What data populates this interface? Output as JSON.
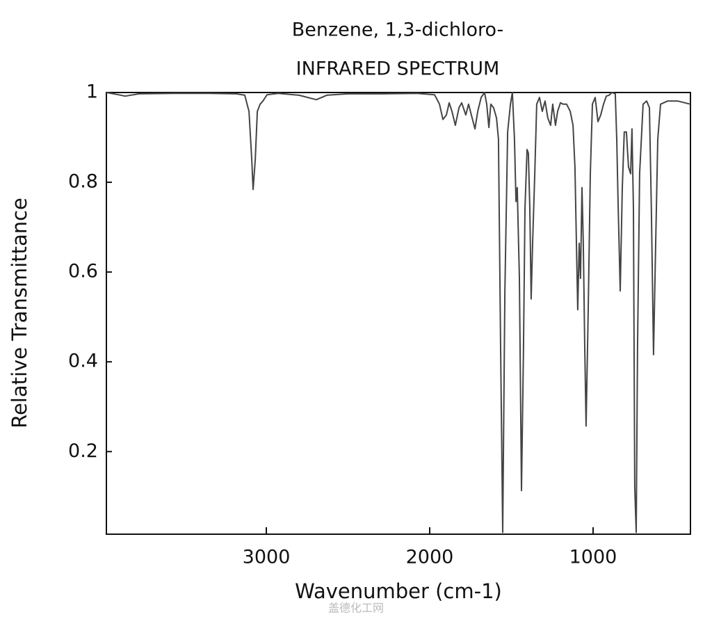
{
  "chart_data": {
    "type": "line",
    "title": "Benzene, 1,3-dichloro-",
    "subtitle": "INFRARED SPECTRUM",
    "x_label": "Wavenumber (cm-1)",
    "y_label": "Relative Transmittance",
    "color": "#444444",
    "xlim": [
      3979,
      404
    ],
    "ylim": [
      0.016,
      1.0
    ],
    "xticks": [
      3000,
      2000,
      1000
    ],
    "yticks": [
      1,
      0.8,
      0.6,
      0.4,
      0.2
    ],
    "x": [
      3979,
      3906,
      3864,
      3779,
      3566,
      3353,
      3183,
      3132,
      3106,
      3089,
      3081,
      3068,
      3055,
      3038,
      3021,
      2996,
      2928,
      2800,
      2694,
      2630,
      2502,
      2289,
      2077,
      1970,
      1940,
      1919,
      1898,
      1881,
      1864,
      1843,
      1821,
      1804,
      1779,
      1762,
      1745,
      1723,
      1706,
      1685,
      1664,
      1651,
      1638,
      1626,
      1609,
      1591,
      1579,
      1566,
      1553,
      1540,
      1523,
      1506,
      1494,
      1481,
      1472,
      1464,
      1451,
      1438,
      1426,
      1417,
      1404,
      1396,
      1387,
      1379,
      1370,
      1357,
      1345,
      1328,
      1311,
      1294,
      1277,
      1260,
      1247,
      1230,
      1217,
      1200,
      1183,
      1162,
      1140,
      1123,
      1111,
      1102,
      1094,
      1085,
      1077,
      1068,
      1060,
      1051,
      1043,
      1030,
      1017,
      1004,
      987,
      970,
      953,
      936,
      919,
      902,
      885,
      864,
      855,
      847,
      834,
      821,
      809,
      796,
      783,
      770,
      762,
      753,
      745,
      736,
      728,
      715,
      694,
      672,
      655,
      643,
      630,
      617,
      604,
      587,
      545,
      481,
      438,
      404
    ],
    "values": [
      1.0,
      0.995,
      0.992,
      0.997,
      0.998,
      0.998,
      0.997,
      0.994,
      0.958,
      0.85,
      0.784,
      0.85,
      0.958,
      0.974,
      0.981,
      0.995,
      0.998,
      0.994,
      0.984,
      0.994,
      0.997,
      0.997,
      0.998,
      0.995,
      0.974,
      0.94,
      0.95,
      0.977,
      0.958,
      0.927,
      0.966,
      0.977,
      0.95,
      0.974,
      0.95,
      0.919,
      0.958,
      0.989,
      1.0,
      0.974,
      0.922,
      0.974,
      0.966,
      0.943,
      0.896,
      0.431,
      0.02,
      0.555,
      0.912,
      0.974,
      1.0,
      0.896,
      0.757,
      0.788,
      0.586,
      0.113,
      0.431,
      0.741,
      0.873,
      0.865,
      0.741,
      0.54,
      0.664,
      0.819,
      0.974,
      0.989,
      0.958,
      0.981,
      0.943,
      0.927,
      0.974,
      0.927,
      0.958,
      0.977,
      0.974,
      0.974,
      0.958,
      0.927,
      0.834,
      0.664,
      0.516,
      0.664,
      0.586,
      0.788,
      0.664,
      0.431,
      0.257,
      0.509,
      0.819,
      0.974,
      0.989,
      0.935,
      0.95,
      0.974,
      0.992,
      0.994,
      1.0,
      0.997,
      0.896,
      0.757,
      0.558,
      0.788,
      0.912,
      0.912,
      0.834,
      0.819,
      0.919,
      0.741,
      0.121,
      0.02,
      0.431,
      0.819,
      0.974,
      0.981,
      0.966,
      0.741,
      0.416,
      0.664,
      0.896,
      0.974,
      0.981,
      0.981,
      0.977,
      0.974
    ]
  },
  "watermark": "盖德化工网"
}
